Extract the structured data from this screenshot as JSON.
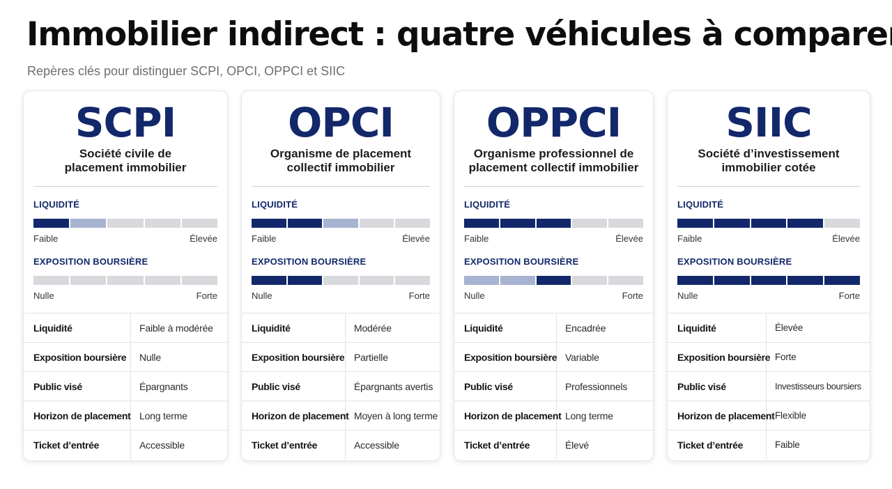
{
  "page": {
    "title": "Immobilier indirect : quatre véhicules à comparer",
    "subtitle": "Repères clés pour distinguer SCPI, OPCI, OPPCI et SIIC"
  },
  "colors": {
    "brand_navy": "#12286a",
    "filled": "#12286a",
    "partial": "#a7b3d0",
    "empty": "#d7d9dc"
  },
  "labels": {
    "liquidity": "LIQUIDITÉ",
    "exposure": "EXPOSITION BOURSIÈRE",
    "liquidity_low": "Faible",
    "liquidity_high": "Élevée",
    "exposure_low": "Nulle",
    "exposure_high": "Forte"
  },
  "cards": [
    {
      "acronym": "SCPI",
      "fullname_line1": "Société civile de",
      "fullname_line2": "placement immobilier",
      "liquidity_levels": [
        "filled",
        "partial",
        "empty",
        "empty",
        "empty"
      ],
      "exposure_levels": [
        "empty",
        "empty",
        "empty",
        "empty",
        "empty"
      ],
      "rows": [
        {
          "key": "Liquidité",
          "value": "Faible à modérée"
        },
        {
          "key": "Exposition boursière",
          "value": "Nulle"
        },
        {
          "key": "Public visé",
          "value": "Épargnants"
        },
        {
          "key": "Horizon de placement",
          "value": "Long terme"
        },
        {
          "key": "Ticket d’entrée",
          "value": "Accessible"
        }
      ]
    },
    {
      "acronym": "OPCI",
      "fullname_line1": "Organisme de placement",
      "fullname_line2": "collectif immobilier",
      "liquidity_levels": [
        "filled",
        "filled",
        "partial",
        "empty",
        "empty"
      ],
      "exposure_levels": [
        "filled",
        "filled",
        "empty",
        "empty",
        "empty"
      ],
      "rows": [
        {
          "key": "Liquidité",
          "value": "Modérée"
        },
        {
          "key": "Exposition boursière",
          "value": "Partielle"
        },
        {
          "key": "Public visé",
          "value": "Épargnants avertis"
        },
        {
          "key": "Horizon de placement",
          "value": "Moyen à long terme"
        },
        {
          "key": "Ticket d’entrée",
          "value": "Accessible"
        }
      ]
    },
    {
      "acronym": "OPPCI",
      "fullname_line1": "Organisme professionnel de",
      "fullname_line2": "placement collectif immobilier",
      "liquidity_levels": [
        "filled",
        "filled",
        "filled",
        "empty",
        "empty"
      ],
      "exposure_levels": [
        "partial",
        "partial",
        "filled",
        "empty",
        "empty"
      ],
      "rows": [
        {
          "key": "Liquidité",
          "value": "Encadrée"
        },
        {
          "key": "Exposition boursière",
          "value": "Variable"
        },
        {
          "key": "Public visé",
          "value": "Professionnels"
        },
        {
          "key": "Horizon de placement",
          "value": "Long terme"
        },
        {
          "key": "Ticket d’entrée",
          "value": "Élevé"
        }
      ]
    },
    {
      "acronym": "SIIC",
      "fullname_line1": "Société d’investissement",
      "fullname_line2": "immobilier cotée",
      "liquidity_levels": [
        "filled",
        "filled",
        "filled",
        "filled",
        "empty"
      ],
      "exposure_levels": [
        "filled",
        "filled",
        "filled",
        "filled",
        "filled"
      ],
      "rows": [
        {
          "key": "Liquidité",
          "value": "Élevée"
        },
        {
          "key": "Exposition boursière",
          "value": "Forte"
        },
        {
          "key": "Public visé",
          "value": "Investisseurs boursiers"
        },
        {
          "key": "Horizon de placement",
          "value": "Flexible"
        },
        {
          "key": "Ticket d’entrée",
          "value": "Faible"
        }
      ]
    }
  ]
}
